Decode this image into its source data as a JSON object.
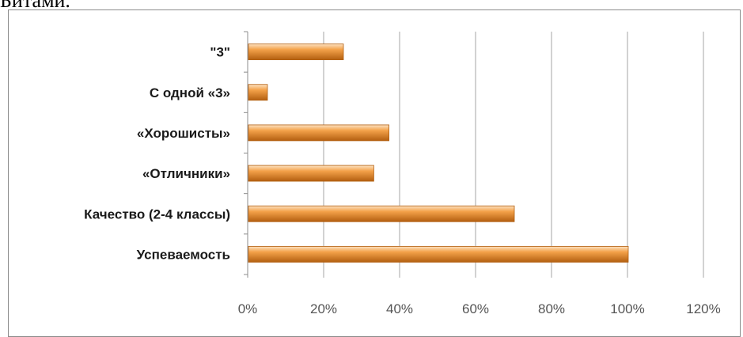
{
  "top_text": "Битами.",
  "colors": {
    "bar_light": "#fce2c2",
    "bar_mid": "#f4a24a",
    "bar_dark": "#b35f10",
    "grid": "#a6a6a6",
    "axis": "#8c8c8c"
  },
  "chart_data": {
    "type": "bar",
    "orientation": "horizontal",
    "categories": [
      "\"3\"",
      "С одной «3»",
      "«Хорошисты»",
      "«Отличники»",
      "Качество (2-4 классы)",
      "Успеваемость"
    ],
    "values": [
      25,
      5,
      37,
      33,
      70,
      100
    ],
    "x_ticks": [
      "0%",
      "20%",
      "40%",
      "60%",
      "80%",
      "100%",
      "120%"
    ],
    "xlim": [
      0,
      120
    ],
    "unit": "%",
    "grid": "vertical",
    "legend": "none",
    "title": "",
    "xlabel": "",
    "ylabel": ""
  }
}
